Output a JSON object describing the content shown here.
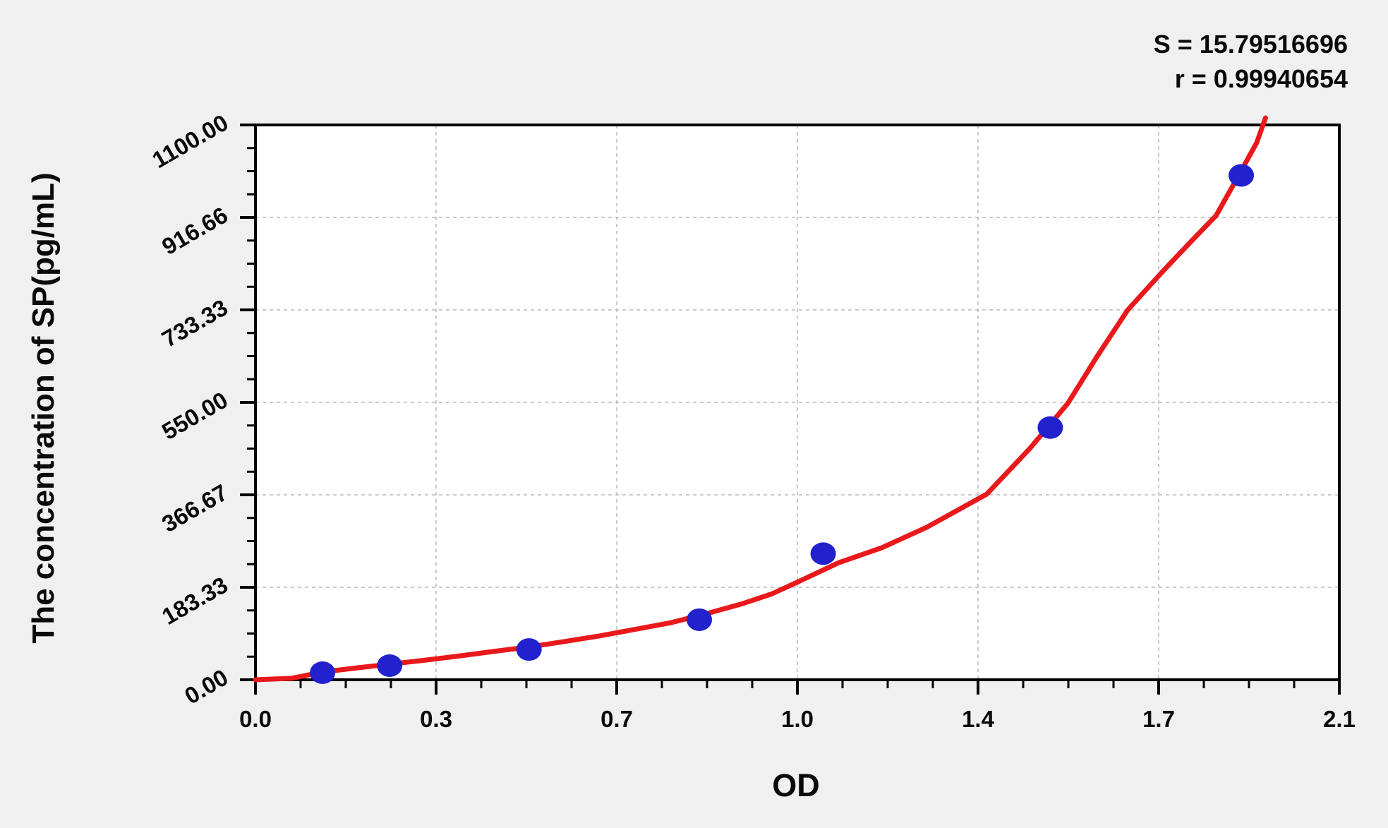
{
  "page": {
    "background": "#f0f0f0"
  },
  "stats": {
    "s_label": "S = 15.79516696",
    "r_label": "r = 0.99940654"
  },
  "chart_data": {
    "type": "scatter",
    "title": "",
    "xlabel": "OD",
    "ylabel": "The concentration of SP(pg/mL)",
    "legend": "none",
    "grid": "dashed at major ticks",
    "plot_bg": "#ffffff",
    "axis_color": "#000000",
    "grid_color": "#b8b8b8",
    "curve_color": "#e9191b",
    "point_color": "#2121cd",
    "x_axis": {
      "min": 0,
      "max": 2.1,
      "tick_values": [
        0,
        0.35,
        0.7,
        1.05,
        1.4,
        1.75,
        2.1
      ],
      "tick_labels": [
        "0.0",
        "0.3",
        "0.7",
        "1.0",
        "1.4",
        "1.7",
        "2.1"
      ],
      "minor_divisions": 4
    },
    "y_axis": {
      "min": 0,
      "max": 1100,
      "tick_values": [
        0,
        183.33,
        366.67,
        550,
        733.33,
        916.66,
        1100
      ],
      "tick_labels": [
        "0.00",
        "183.33",
        "366.67",
        "550.00",
        "733.33",
        "916.66",
        "1100.00"
      ],
      "minor_divisions": 4
    },
    "points": [
      {
        "od": 0.13,
        "conc": 14
      },
      {
        "od": 0.26,
        "conc": 28
      },
      {
        "od": 0.53,
        "conc": 60
      },
      {
        "od": 0.86,
        "conc": 119
      },
      {
        "od": 1.1,
        "conc": 250
      },
      {
        "od": 1.54,
        "conc": 500
      },
      {
        "od": 1.91,
        "conc": 1000
      }
    ],
    "curve_samples": [
      [
        0,
        0
      ],
      [
        0.07,
        3
      ],
      [
        0.134,
        16
      ],
      [
        0.2,
        24
      ],
      [
        0.261,
        31
      ],
      [
        0.33,
        39
      ],
      [
        0.394,
        47
      ],
      [
        0.46,
        56
      ],
      [
        0.529,
        65
      ],
      [
        0.6,
        76
      ],
      [
        0.667,
        87
      ],
      [
        0.73,
        99
      ],
      [
        0.804,
        113
      ],
      [
        0.87,
        130
      ],
      [
        0.941,
        150
      ],
      [
        1.0,
        170
      ],
      [
        1.053,
        195
      ],
      [
        1.13,
        232
      ],
      [
        1.214,
        262
      ],
      [
        1.3,
        302
      ],
      [
        1.417,
        368
      ],
      [
        1.5,
        458
      ],
      [
        1.574,
        548
      ],
      [
        1.63,
        640
      ],
      [
        1.69,
        733
      ],
      [
        1.76,
        812
      ],
      [
        1.81,
        866
      ],
      [
        1.861,
        920
      ],
      [
        1.905,
        1000
      ],
      [
        1.94,
        1065
      ],
      [
        1.957,
        1114
      ]
    ]
  }
}
